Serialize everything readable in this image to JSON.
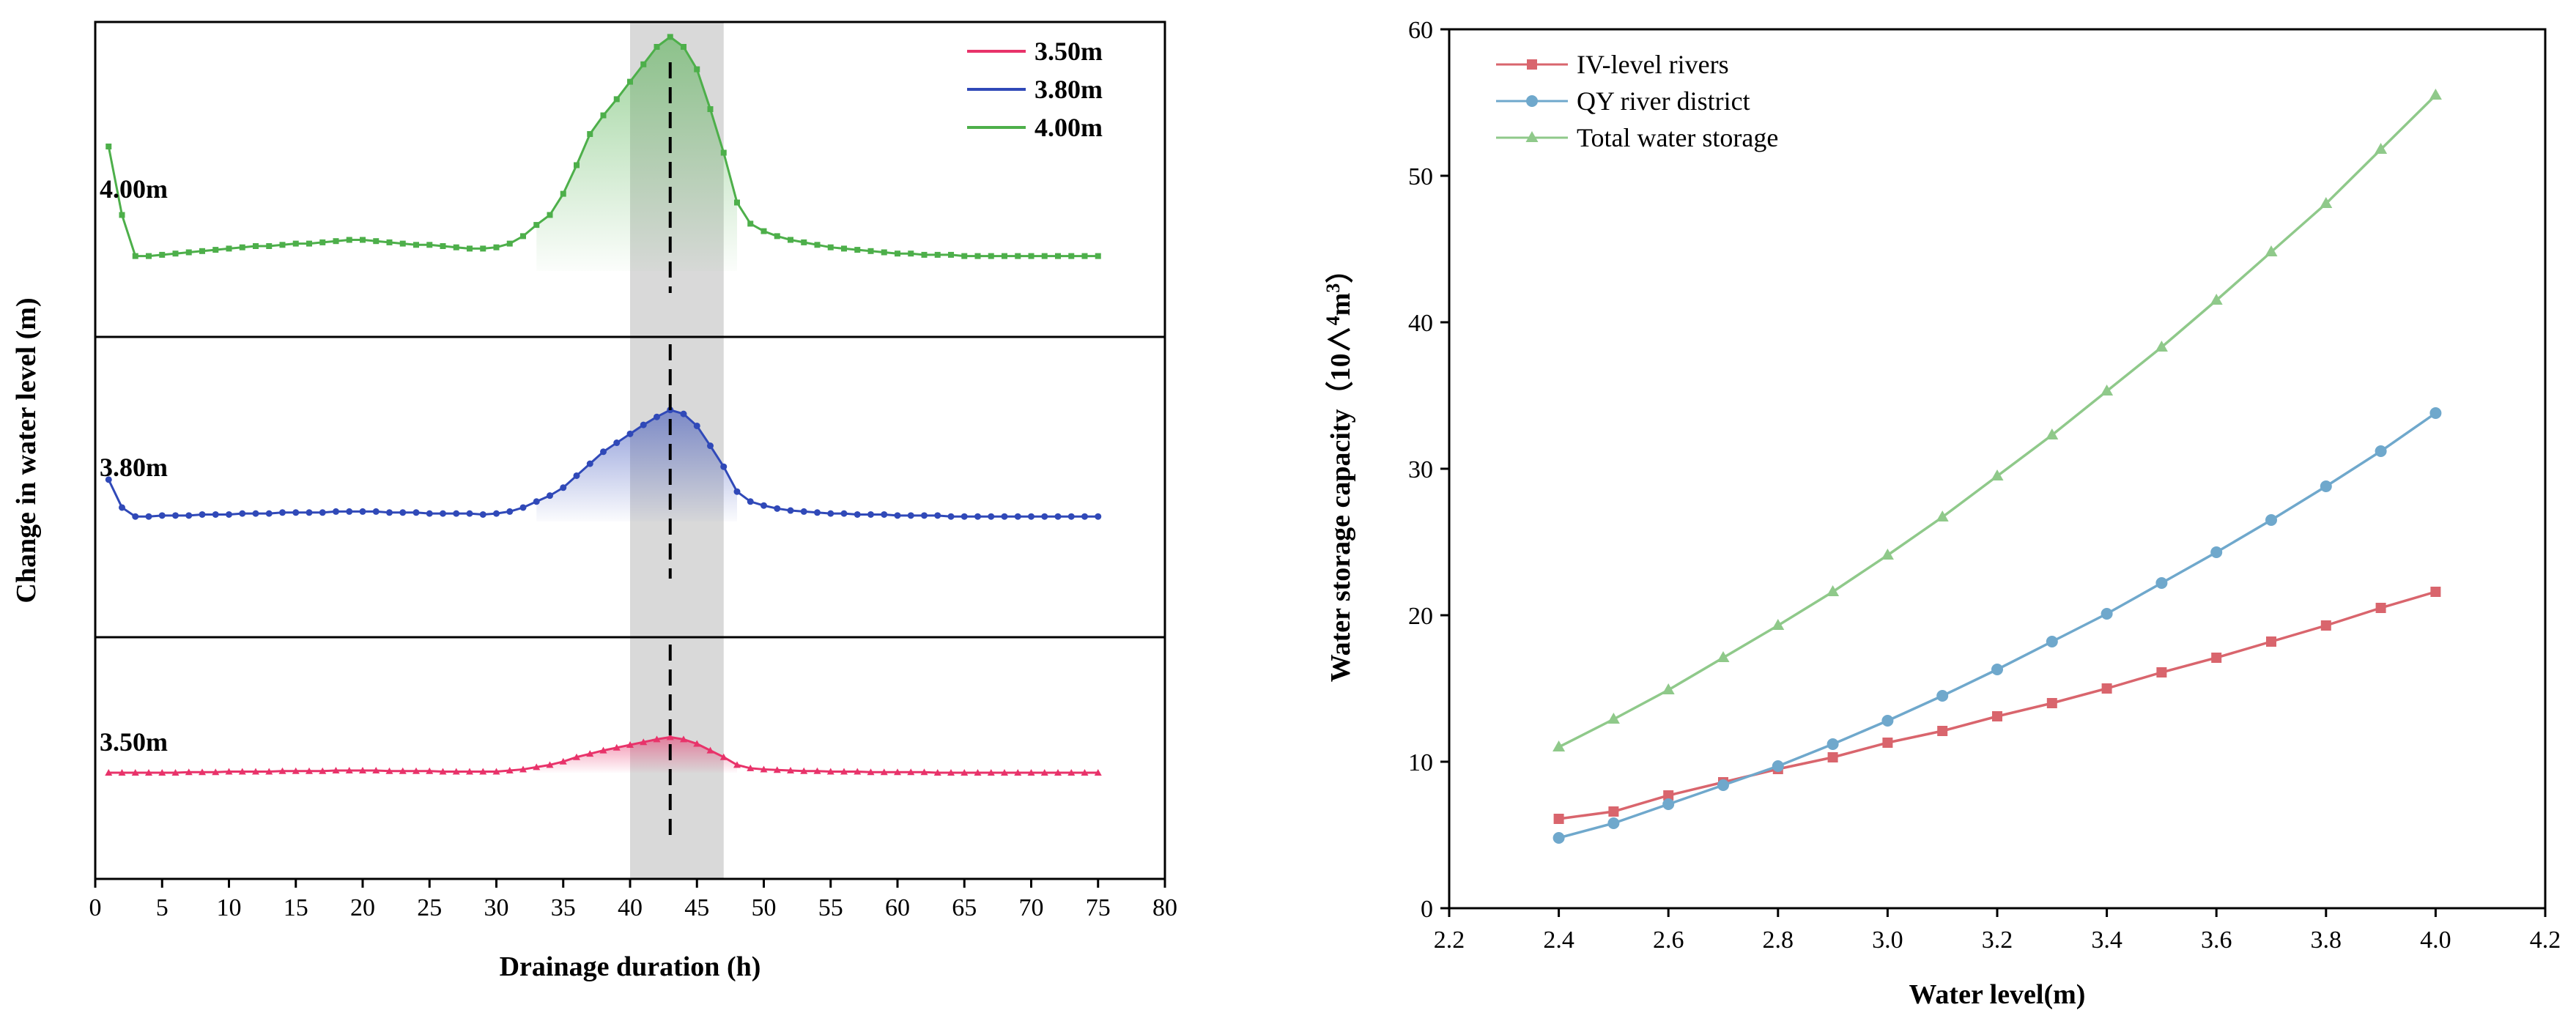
{
  "chart_data": [
    {
      "type": "line",
      "title": "",
      "xlabel": "Drainage duration (h)",
      "ylabel": "Change in water level (m)",
      "xlim": [
        0,
        80
      ],
      "xticks": [
        0,
        5,
        10,
        15,
        20,
        25,
        30,
        35,
        40,
        45,
        50,
        55,
        60,
        65,
        70,
        75,
        80
      ],
      "highlight_band": [
        40,
        47
      ],
      "peak_line_x": 43,
      "x": [
        1,
        2,
        3,
        4,
        5,
        6,
        7,
        8,
        9,
        10,
        11,
        12,
        13,
        14,
        15,
        16,
        17,
        18,
        19,
        20,
        21,
        22,
        23,
        24,
        25,
        26,
        27,
        28,
        29,
        30,
        31,
        32,
        33,
        34,
        35,
        36,
        37,
        38,
        39,
        40,
        41,
        42,
        43,
        44,
        45,
        46,
        47,
        48,
        49,
        50,
        51,
        52,
        53,
        54,
        55,
        56,
        57,
        58,
        59,
        60,
        61,
        62,
        63,
        64,
        65,
        66,
        67,
        68,
        69,
        70,
        71,
        72,
        73,
        74,
        75
      ],
      "series": [
        {
          "name": "4.00m",
          "color": "#4daf4a",
          "panel_label": "4.00m",
          "values": [
            1.0,
            0.45,
            0.12,
            0.12,
            0.13,
            0.14,
            0.15,
            0.16,
            0.17,
            0.18,
            0.19,
            0.2,
            0.2,
            0.21,
            0.22,
            0.22,
            0.23,
            0.24,
            0.25,
            0.25,
            0.24,
            0.23,
            0.22,
            0.21,
            0.21,
            0.2,
            0.19,
            0.18,
            0.18,
            0.19,
            0.22,
            0.28,
            0.37,
            0.45,
            0.62,
            0.85,
            1.1,
            1.25,
            1.38,
            1.52,
            1.66,
            1.8,
            1.88,
            1.8,
            1.62,
            1.3,
            0.95,
            0.55,
            0.38,
            0.32,
            0.28,
            0.25,
            0.23,
            0.21,
            0.19,
            0.18,
            0.17,
            0.16,
            0.15,
            0.14,
            0.14,
            0.13,
            0.13,
            0.13,
            0.12,
            0.12,
            0.12,
            0.12,
            0.12,
            0.12,
            0.12,
            0.12,
            0.12,
            0.12,
            0.12
          ]
        },
        {
          "name": "3.80m",
          "color": "#3049b8",
          "panel_label": "3.80m",
          "values": [
            0.42,
            0.14,
            0.05,
            0.05,
            0.06,
            0.06,
            0.06,
            0.07,
            0.07,
            0.07,
            0.08,
            0.08,
            0.08,
            0.09,
            0.09,
            0.09,
            0.09,
            0.1,
            0.1,
            0.1,
            0.1,
            0.09,
            0.09,
            0.09,
            0.08,
            0.08,
            0.08,
            0.08,
            0.07,
            0.08,
            0.1,
            0.14,
            0.2,
            0.26,
            0.34,
            0.46,
            0.58,
            0.7,
            0.79,
            0.88,
            0.97,
            1.05,
            1.12,
            1.08,
            0.96,
            0.76,
            0.55,
            0.3,
            0.2,
            0.16,
            0.13,
            0.11,
            0.1,
            0.09,
            0.08,
            0.08,
            0.07,
            0.07,
            0.07,
            0.06,
            0.06,
            0.06,
            0.06,
            0.05,
            0.05,
            0.05,
            0.05,
            0.05,
            0.05,
            0.05,
            0.05,
            0.05,
            0.05,
            0.05,
            0.05
          ]
        },
        {
          "name": "3.50m",
          "color": "#e8336a",
          "panel_label": "3.50m",
          "values": [
            0.0,
            0.0,
            0.0,
            0.0,
            0.0,
            0.0,
            0.01,
            0.01,
            0.01,
            0.02,
            0.02,
            0.02,
            0.02,
            0.03,
            0.03,
            0.03,
            0.03,
            0.04,
            0.04,
            0.04,
            0.04,
            0.03,
            0.03,
            0.03,
            0.03,
            0.02,
            0.02,
            0.02,
            0.02,
            0.02,
            0.04,
            0.06,
            0.1,
            0.14,
            0.2,
            0.28,
            0.34,
            0.4,
            0.45,
            0.5,
            0.55,
            0.6,
            0.64,
            0.6,
            0.52,
            0.4,
            0.28,
            0.14,
            0.08,
            0.06,
            0.05,
            0.04,
            0.03,
            0.03,
            0.02,
            0.02,
            0.02,
            0.01,
            0.01,
            0.01,
            0.01,
            0.01,
            0.0,
            0.0,
            0.0,
            0.0,
            0.0,
            0.0,
            0.0,
            0.0,
            0.0,
            0.0,
            0.0,
            0.0,
            0.0
          ]
        }
      ],
      "legend": [
        "3.50m",
        "3.80m",
        "4.00m"
      ]
    },
    {
      "type": "line",
      "title": "",
      "xlabel": "Water level(m)",
      "ylabel": "Water storage capacity（10∧4m3）",
      "ylabel_parts": [
        "Water storage capacity（10∧",
        "4",
        "m",
        "3",
        "）"
      ],
      "xlim": [
        2.2,
        4.2
      ],
      "ylim": [
        0,
        60
      ],
      "xticks": [
        "2.2",
        "2.4",
        "2.6",
        "2.8",
        "3.0",
        "3.2",
        "3.4",
        "3.6",
        "3.8",
        "4.0",
        "4.2"
      ],
      "yticks": [
        "0",
        "10",
        "20",
        "30",
        "40",
        "50",
        "60"
      ],
      "x": [
        2.4,
        2.5,
        2.6,
        2.7,
        2.8,
        2.9,
        3.0,
        3.1,
        3.2,
        3.3,
        3.4,
        3.5,
        3.6,
        3.7,
        3.8,
        3.9,
        4.0
      ],
      "series": [
        {
          "name": "IV-level rivers",
          "color": "#d9656d",
          "marker": "square",
          "values": [
            6.1,
            6.6,
            7.7,
            8.6,
            9.5,
            10.3,
            11.3,
            12.1,
            13.1,
            14.0,
            15.0,
            16.1,
            17.1,
            18.2,
            19.3,
            20.5,
            21.6
          ]
        },
        {
          "name": "QY river district",
          "color": "#6fa8cc",
          "marker": "circle",
          "values": [
            4.8,
            5.8,
            7.1,
            8.4,
            9.7,
            11.2,
            12.8,
            14.5,
            16.3,
            18.2,
            20.1,
            22.2,
            24.3,
            26.5,
            28.8,
            31.2,
            33.8
          ]
        },
        {
          "name": "Total water storage",
          "color": "#8fc98a",
          "marker": "triangle",
          "values": [
            11.0,
            12.9,
            14.9,
            17.1,
            19.3,
            21.6,
            24.1,
            26.7,
            29.5,
            32.3,
            35.3,
            38.3,
            41.5,
            44.8,
            48.1,
            51.8,
            55.5
          ]
        }
      ]
    }
  ]
}
